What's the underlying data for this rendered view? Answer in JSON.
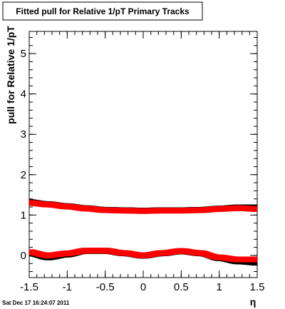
{
  "chart_data": {
    "type": "scatter",
    "title": "Fitted pull for Relative 1/pT  Primary Tracks",
    "xlabel": "η",
    "ylabel": "pull for Relative 1/pT",
    "xlim": [
      -1.5,
      1.5
    ],
    "ylim": [
      -0.55,
      5.55
    ],
    "x_ticks": [
      -1.5,
      -1,
      -0.5,
      0,
      0.5,
      1,
      1.5
    ],
    "x_tick_labels": [
      "-1.5",
      "-1",
      "-0.5",
      "0",
      "0.5",
      "1",
      "1.5"
    ],
    "y_ticks": [
      0,
      1,
      2,
      3,
      4,
      5
    ],
    "y_tick_labels": [
      "0",
      "1",
      "2",
      "3",
      "4",
      "5"
    ],
    "grid": false,
    "legend": "none",
    "series": [
      {
        "color": "#000000",
        "marker": "square",
        "x": [
          -1.5,
          -1.25,
          -1.0,
          -0.75,
          -0.5,
          -0.25,
          0.0,
          0.25,
          0.5,
          0.75,
          1.0,
          1.25,
          1.5
        ],
        "y": [
          1.32,
          1.27,
          1.22,
          1.17,
          1.13,
          1.12,
          1.11,
          1.12,
          1.12,
          1.13,
          1.16,
          1.19,
          1.19
        ]
      },
      {
        "color": "#ff0000",
        "marker": "square",
        "x": [
          -1.5,
          -1.25,
          -1.0,
          -0.75,
          -0.5,
          -0.25,
          0.0,
          0.25,
          0.5,
          0.75,
          1.0,
          1.25,
          1.5
        ],
        "y": [
          1.3,
          1.26,
          1.21,
          1.16,
          1.12,
          1.11,
          1.1,
          1.11,
          1.11,
          1.12,
          1.15,
          1.17,
          1.15
        ]
      },
      {
        "color": "#000000",
        "marker": "square",
        "x": [
          -1.5,
          -1.25,
          -1.0,
          -0.75,
          -0.5,
          -0.25,
          0.0,
          0.25,
          0.5,
          0.75,
          1.0,
          1.25,
          1.5
        ],
        "y": [
          0.05,
          -0.05,
          0.02,
          0.11,
          0.11,
          0.05,
          -0.01,
          0.05,
          0.1,
          0.05,
          -0.07,
          -0.15,
          -0.18
        ]
      },
      {
        "color": "#ff0000",
        "marker": "square",
        "x": [
          -1.5,
          -1.25,
          -1.0,
          -0.75,
          -0.5,
          -0.25,
          0.0,
          0.25,
          0.5,
          0.75,
          1.0,
          1.25,
          1.5
        ],
        "y": [
          0.08,
          0.0,
          0.05,
          0.12,
          0.12,
          0.06,
          0.0,
          0.06,
          0.11,
          0.06,
          -0.05,
          -0.1,
          -0.1
        ]
      }
    ]
  },
  "date_stamp": "Sat Dec 17 16:24:07 2011"
}
